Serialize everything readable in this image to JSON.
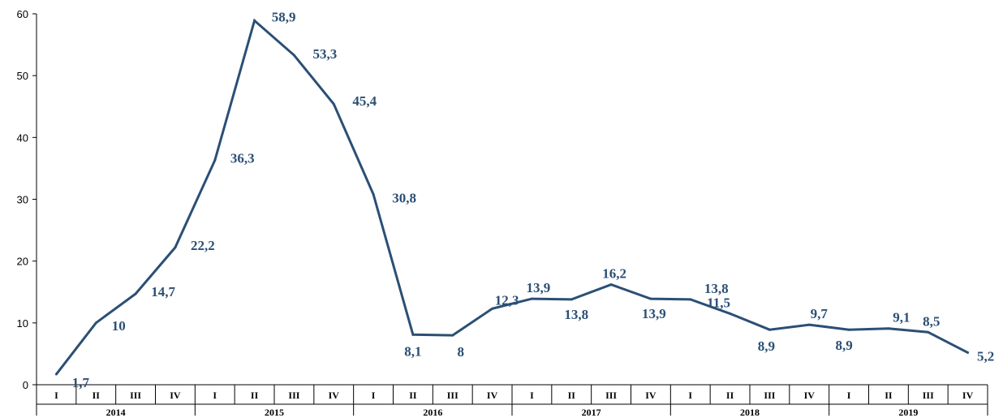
{
  "chart_data": {
    "type": "line",
    "title": "",
    "xlabel": "",
    "ylabel": "",
    "ylim": [
      0,
      60
    ],
    "yticks": [
      0,
      10,
      20,
      30,
      40,
      50,
      60
    ],
    "grid": false,
    "legend": "none",
    "color": "#2b4f75",
    "quarters": [
      "I",
      "II",
      "III",
      "IV"
    ],
    "years": [
      "2014",
      "2015",
      "2016",
      "2017",
      "2018",
      "2019"
    ],
    "series": [
      {
        "values": [
          1.7,
          10,
          14.7,
          22.2,
          36.3,
          58.9,
          53.3,
          45.4,
          30.8,
          8.1,
          8,
          12.3,
          13.9,
          13.8,
          16.2,
          13.9,
          13.8,
          11.5,
          8.9,
          9.7,
          8.9,
          9.1,
          8.5,
          5.2
        ],
        "data_labels": [
          "1,7",
          "10",
          "14,7",
          "22,2",
          "36,3",
          "58,9",
          "53,3",
          "45,4",
          "30,8",
          "8,1",
          "8",
          "12,3",
          "13,9",
          "13,8",
          "16,2",
          "13,9",
          "13,8",
          "11,5",
          "8,9",
          "9,7",
          "8,9",
          "9,1",
          "8,5",
          "5,2"
        ]
      }
    ]
  }
}
